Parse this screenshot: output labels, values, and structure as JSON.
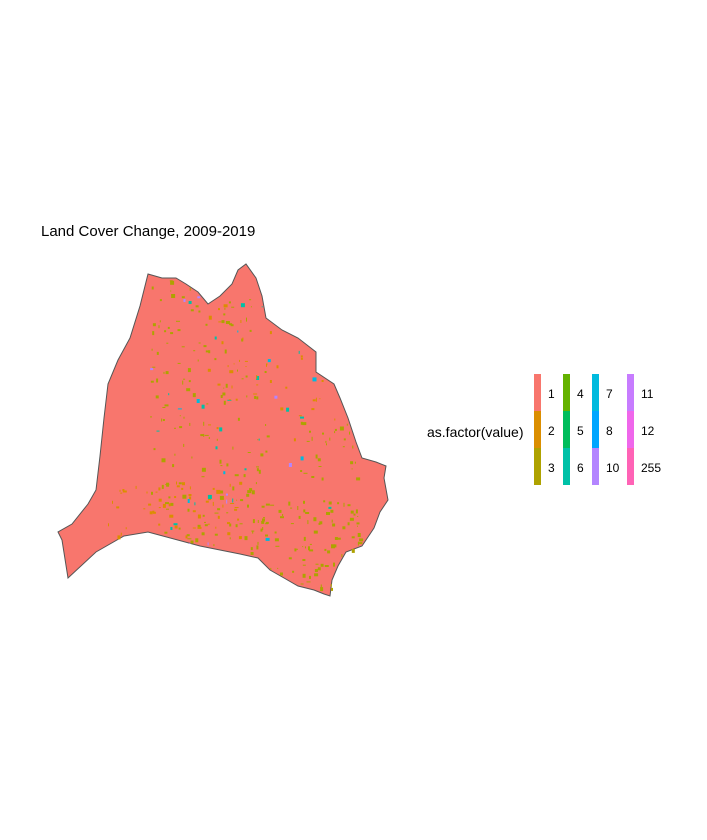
{
  "title": "Land Cover Change, 2009-2019",
  "legend": {
    "title": "as.factor(value)",
    "items": [
      {
        "label": "1",
        "color": "#F8766D"
      },
      {
        "label": "2",
        "color": "#DB8E00"
      },
      {
        "label": "3",
        "color": "#AEA200"
      },
      {
        "label": "4",
        "color": "#64B200"
      },
      {
        "label": "5",
        "color": "#00BD5C"
      },
      {
        "label": "6",
        "color": "#00C1A7"
      },
      {
        "label": "7",
        "color": "#00BADE"
      },
      {
        "label": "8",
        "color": "#00A6FF"
      },
      {
        "label": "10",
        "color": "#B385FF"
      },
      {
        "label": "11",
        "color": "#C77CFF"
      },
      {
        "label": "12",
        "color": "#EF67EB"
      },
      {
        "label": "255",
        "color": "#FF63B6"
      }
    ]
  },
  "map": {
    "base_color": "#F8766D",
    "outline_color": "#555555"
  }
}
